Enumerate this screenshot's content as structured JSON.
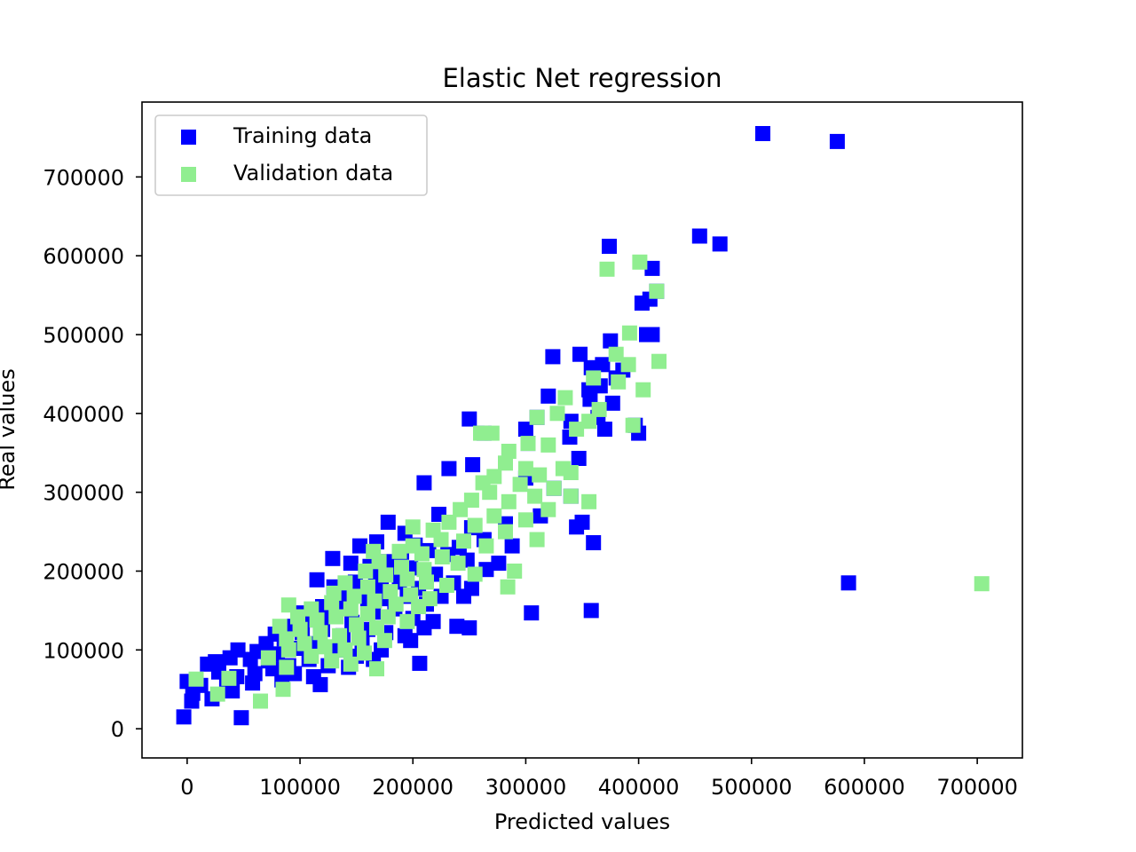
{
  "chart_data": {
    "type": "scatter",
    "title": "Elastic Net regression",
    "xlabel": "Predicted values",
    "ylabel": "Real values",
    "xlim": [
      -40000,
      740000
    ],
    "ylim": [
      -37000,
      795000
    ],
    "x_ticks": [
      0,
      100000,
      200000,
      300000,
      400000,
      500000,
      600000,
      700000
    ],
    "x_tick_labels": [
      "0",
      "100000",
      "200000",
      "300000",
      "400000",
      "500000",
      "600000",
      "700000"
    ],
    "y_ticks": [
      0,
      100000,
      200000,
      300000,
      400000,
      500000,
      600000,
      700000
    ],
    "y_tick_labels": [
      "0",
      "100000",
      "200000",
      "300000",
      "400000",
      "500000",
      "600000",
      "700000"
    ],
    "grid": false,
    "legend_position": "top-left",
    "series": [
      {
        "name": "Training data",
        "color": "#0000ff",
        "marker": "square",
        "points": [
          [
            510000,
            755000
          ],
          [
            576000,
            745000
          ],
          [
            454000,
            625000
          ],
          [
            472000,
            615000
          ],
          [
            374000,
            612000
          ],
          [
            412000,
            584000
          ],
          [
            403000,
            540000
          ],
          [
            410000,
            545000
          ],
          [
            416000,
            555000
          ],
          [
            407000,
            500000
          ],
          [
            412000,
            500000
          ],
          [
            375000,
            492000
          ],
          [
            324000,
            472000
          ],
          [
            348000,
            475000
          ],
          [
            368000,
            462000
          ],
          [
            358000,
            458000
          ],
          [
            386000,
            455000
          ],
          [
            380000,
            445000
          ],
          [
            366000,
            435000
          ],
          [
            356000,
            430000
          ],
          [
            320000,
            422000
          ],
          [
            357000,
            418000
          ],
          [
            377000,
            413000
          ],
          [
            397000,
            385000
          ],
          [
            400000,
            375000
          ],
          [
            364000,
            395000
          ],
          [
            340000,
            390000
          ],
          [
            310000,
            395000
          ],
          [
            250000,
            393000
          ],
          [
            300000,
            380000
          ],
          [
            263000,
            375000
          ],
          [
            339000,
            370000
          ],
          [
            370000,
            380000
          ],
          [
            347000,
            343000
          ],
          [
            302000,
            362000
          ],
          [
            253000,
            335000
          ],
          [
            232000,
            330000
          ],
          [
            210000,
            312000
          ],
          [
            340000,
            295000
          ],
          [
            325000,
            305000
          ],
          [
            300000,
            318000
          ],
          [
            350000,
            262000
          ],
          [
            345000,
            256000
          ],
          [
            313000,
            270000
          ],
          [
            282000,
            260000
          ],
          [
            252000,
            255000
          ],
          [
            223000,
            272000
          ],
          [
            178000,
            262000
          ],
          [
            193000,
            248000
          ],
          [
            360000,
            236000
          ],
          [
            288000,
            232000
          ],
          [
            263000,
            240000
          ],
          [
            241000,
            230000
          ],
          [
            168000,
            237000
          ],
          [
            153000,
            232000
          ],
          [
            129000,
            216000
          ],
          [
            145000,
            210000
          ],
          [
            162000,
            206000
          ],
          [
            177000,
            212000
          ],
          [
            190000,
            220000
          ],
          [
            202000,
            233000
          ],
          [
            214000,
            226000
          ],
          [
            231000,
            221000
          ],
          [
            248000,
            214000
          ],
          [
            265000,
            202000
          ],
          [
            276000,
            210000
          ],
          [
            586000,
            185000
          ],
          [
            115000,
            189000
          ],
          [
            130000,
            180000
          ],
          [
            149000,
            186000
          ],
          [
            167000,
            193000
          ],
          [
            183000,
            199000
          ],
          [
            198000,
            204000
          ],
          [
            220000,
            196000
          ],
          [
            236000,
            185000
          ],
          [
            252000,
            178000
          ],
          [
            140000,
            170000
          ],
          [
            155000,
            175000
          ],
          [
            172000,
            180000
          ],
          [
            188000,
            186000
          ],
          [
            205000,
            178000
          ],
          [
            225000,
            168000
          ],
          [
            245000,
            168000
          ],
          [
            160000,
            160000
          ],
          [
            178000,
            165000
          ],
          [
            195000,
            168000
          ],
          [
            212000,
            158000
          ],
          [
            305000,
            147000
          ],
          [
            358000,
            150000
          ],
          [
            100000,
            147000
          ],
          [
            120000,
            155000
          ],
          [
            138000,
            160000
          ],
          [
            165000,
            148000
          ],
          [
            184000,
            152000
          ],
          [
            200000,
            140000
          ],
          [
            218000,
            136000
          ],
          [
            239000,
            130000
          ],
          [
            210000,
            128000
          ],
          [
            78000,
            120000
          ],
          [
            95000,
            130000
          ],
          [
            110000,
            138000
          ],
          [
            128000,
            142000
          ],
          [
            146000,
            135000
          ],
          [
            160000,
            126000
          ],
          [
            176000,
            122000
          ],
          [
            193000,
            118000
          ],
          [
            198000,
            112000
          ],
          [
            70000,
            108000
          ],
          [
            86000,
            114000
          ],
          [
            102000,
            122000
          ],
          [
            120000,
            126000
          ],
          [
            138000,
            118000
          ],
          [
            155000,
            110000
          ],
          [
            172000,
            100000
          ],
          [
            62000,
            98000
          ],
          [
            45000,
            100000
          ],
          [
            80000,
            95000
          ],
          [
            98000,
            102000
          ],
          [
            115000,
            108000
          ],
          [
            132000,
            100000
          ],
          [
            150000,
            92000
          ],
          [
            165000,
            88000
          ],
          [
            56000,
            88000
          ],
          [
            38000,
            90000
          ],
          [
            25000,
            85000
          ],
          [
            18000,
            82000
          ],
          [
            72000,
            86000
          ],
          [
            90000,
            80000
          ],
          [
            108000,
            88000
          ],
          [
            125000,
            80000
          ],
          [
            143000,
            78000
          ],
          [
            206000,
            83000
          ],
          [
            28000,
            72000
          ],
          [
            44000,
            66000
          ],
          [
            60000,
            70000
          ],
          [
            76000,
            76000
          ],
          [
            95000,
            70000
          ],
          [
            112000,
            66000
          ],
          [
            0,
            60000
          ],
          [
            12000,
            55000
          ],
          [
            35000,
            60000
          ],
          [
            58000,
            58000
          ],
          [
            84000,
            62000
          ],
          [
            118000,
            56000
          ],
          [
            5000,
            45000
          ],
          [
            22000,
            38000
          ],
          [
            40000,
            48000
          ],
          [
            4000,
            35000
          ],
          [
            -3000,
            15000
          ],
          [
            48000,
            14000
          ],
          [
            250000,
            128000
          ]
        ]
      },
      {
        "name": "Validation data",
        "color": "#90ee90",
        "marker": "square",
        "points": [
          [
            401000,
            592000
          ],
          [
            372000,
            583000
          ],
          [
            416000,
            555000
          ],
          [
            392000,
            502000
          ],
          [
            380000,
            475000
          ],
          [
            391000,
            462000
          ],
          [
            418000,
            466000
          ],
          [
            360000,
            445000
          ],
          [
            382000,
            440000
          ],
          [
            404000,
            430000
          ],
          [
            335000,
            420000
          ],
          [
            310000,
            395000
          ],
          [
            328000,
            400000
          ],
          [
            365000,
            405000
          ],
          [
            395000,
            385000
          ],
          [
            356000,
            390000
          ],
          [
            260000,
            375000
          ],
          [
            270000,
            375000
          ],
          [
            345000,
            380000
          ],
          [
            302000,
            362000
          ],
          [
            320000,
            360000
          ],
          [
            285000,
            352000
          ],
          [
            333000,
            330000
          ],
          [
            340000,
            325000
          ],
          [
            282000,
            337000
          ],
          [
            300000,
            330000
          ],
          [
            312000,
            322000
          ],
          [
            272000,
            320000
          ],
          [
            262000,
            312000
          ],
          [
            295000,
            310000
          ],
          [
            325000,
            305000
          ],
          [
            340000,
            295000
          ],
          [
            308000,
            295000
          ],
          [
            268000,
            300000
          ],
          [
            252000,
            290000
          ],
          [
            285000,
            288000
          ],
          [
            356000,
            288000
          ],
          [
            320000,
            278000
          ],
          [
            242000,
            278000
          ],
          [
            272000,
            270000
          ],
          [
            300000,
            265000
          ],
          [
            232000,
            262000
          ],
          [
            255000,
            258000
          ],
          [
            282000,
            250000
          ],
          [
            200000,
            256000
          ],
          [
            218000,
            252000
          ],
          [
            310000,
            240000
          ],
          [
            225000,
            240000
          ],
          [
            245000,
            238000
          ],
          [
            265000,
            232000
          ],
          [
            200000,
            232000
          ],
          [
            165000,
            225000
          ],
          [
            188000,
            225000
          ],
          [
            208000,
            222000
          ],
          [
            226000,
            218000
          ],
          [
            240000,
            210000
          ],
          [
            170000,
            212000
          ],
          [
            190000,
            205000
          ],
          [
            210000,
            202000
          ],
          [
            255000,
            196000
          ],
          [
            290000,
            200000
          ],
          [
            158000,
            200000
          ],
          [
            176000,
            195000
          ],
          [
            195000,
            190000
          ],
          [
            212000,
            186000
          ],
          [
            230000,
            182000
          ],
          [
            704000,
            184000
          ],
          [
            284000,
            180000
          ],
          [
            140000,
            185000
          ],
          [
            160000,
            180000
          ],
          [
            180000,
            174000
          ],
          [
            198000,
            170000
          ],
          [
            215000,
            165000
          ],
          [
            130000,
            172000
          ],
          [
            148000,
            168000
          ],
          [
            166000,
            162000
          ],
          [
            185000,
            158000
          ],
          [
            205000,
            155000
          ],
          [
            90000,
            157000
          ],
          [
            110000,
            152000
          ],
          [
            128000,
            160000
          ],
          [
            145000,
            152000
          ],
          [
            160000,
            146000
          ],
          [
            178000,
            142000
          ],
          [
            195000,
            136000
          ],
          [
            98000,
            142000
          ],
          [
            115000,
            138000
          ],
          [
            132000,
            142000
          ],
          [
            150000,
            132000
          ],
          [
            168000,
            128000
          ],
          [
            82000,
            130000
          ],
          [
            100000,
            126000
          ],
          [
            118000,
            122000
          ],
          [
            135000,
            118000
          ],
          [
            152000,
            115000
          ],
          [
            175000,
            112000
          ],
          [
            88000,
            114000
          ],
          [
            104000,
            108000
          ],
          [
            122000,
            104000
          ],
          [
            140000,
            100000
          ],
          [
            157000,
            96000
          ],
          [
            90000,
            100000
          ],
          [
            110000,
            92000
          ],
          [
            128000,
            86000
          ],
          [
            145000,
            82000
          ],
          [
            72000,
            90000
          ],
          [
            168000,
            76000
          ],
          [
            88000,
            78000
          ],
          [
            85000,
            50000
          ],
          [
            65000,
            35000
          ],
          [
            8000,
            63000
          ],
          [
            37000,
            64000
          ],
          [
            27000,
            44000
          ]
        ]
      }
    ]
  }
}
